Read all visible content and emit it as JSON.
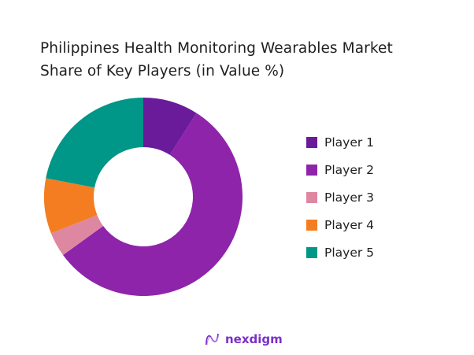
{
  "title": {
    "line1": "Philippines Health Monitoring Wearables Market",
    "line2": "Share of Key Players (in Value %)"
  },
  "legend": [
    {
      "label": "Player 1",
      "color": "#6a1b9a"
    },
    {
      "label": "Player 2",
      "color": "#8e24aa"
    },
    {
      "label": "Player 3",
      "color": "#de87a1"
    },
    {
      "label": "Player 4",
      "color": "#f47d21"
    },
    {
      "label": "Player 5",
      "color": "#009688"
    }
  ],
  "brand": {
    "name": "nexdigm",
    "icon": "nexdigm-logo-icon"
  },
  "chart_data": {
    "type": "pie",
    "subtype": "donut",
    "title": "Philippines Health Monitoring Wearables Market Share of Key Players (in Value %)",
    "categories": [
      "Player 1",
      "Player 2",
      "Player 3",
      "Player 4",
      "Player 5"
    ],
    "values": [
      9,
      56,
      4,
      9,
      22
    ],
    "colors": [
      "#6a1b9a",
      "#8e24aa",
      "#de87a1",
      "#f47d21",
      "#009688"
    ],
    "start_angle": "12 o'clock, clockwise",
    "legend_position": "right",
    "data_labels": false
  }
}
